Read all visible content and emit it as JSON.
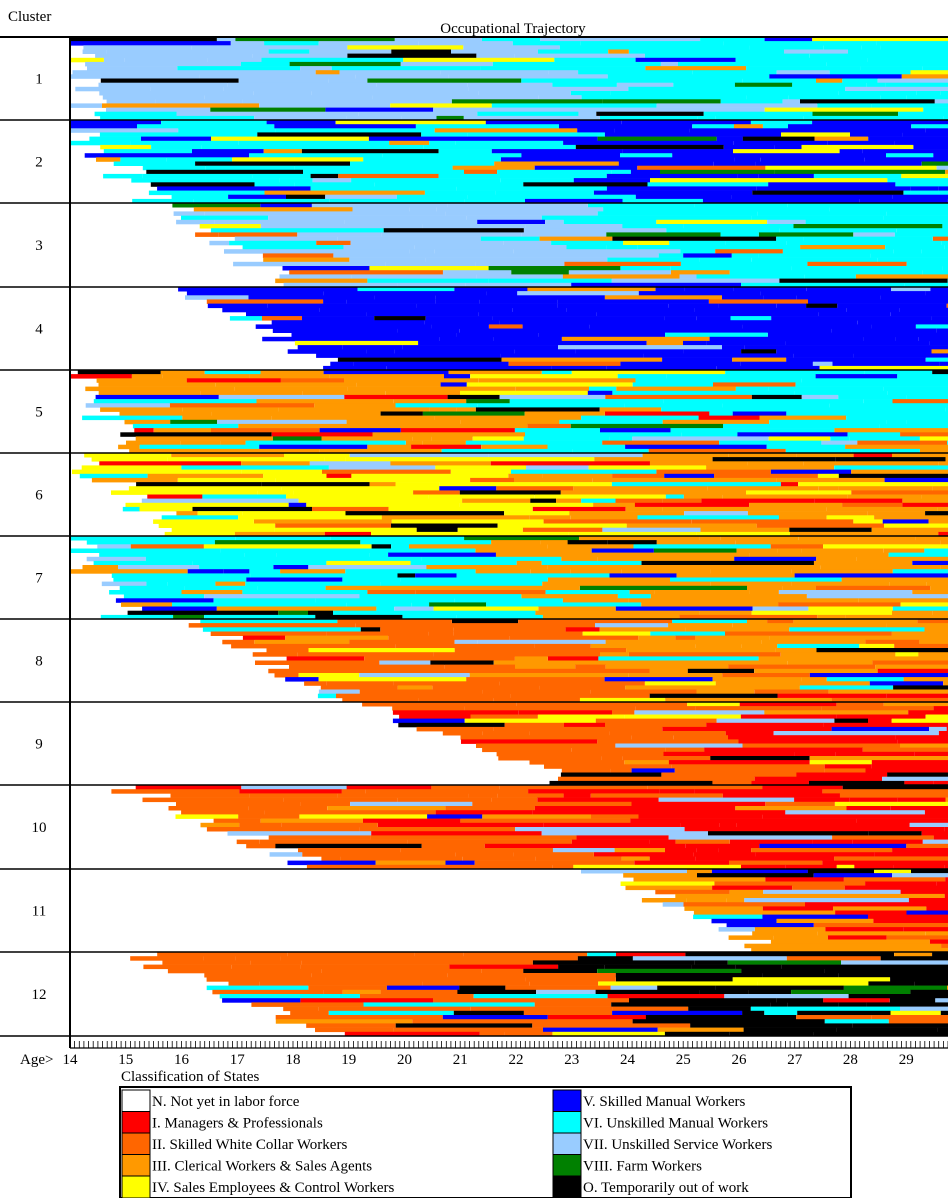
{
  "chart_data": {
    "type": "sequence-index-plot",
    "title": "Occupational Trajectory",
    "ylabel": "Cluster",
    "xlabel_prefix": "Age>",
    "x_ticks": [
      "14",
      "15",
      "16",
      "17",
      "18",
      "19",
      "20",
      "21",
      "22",
      "23",
      "24",
      "25",
      "26",
      "27",
      "28",
      "29"
    ],
    "xlim": [
      14,
      29.75
    ],
    "legend_title": "Classification of States",
    "states": [
      {
        "code": "N",
        "label": "N. Not yet in labor force",
        "color": "#ffffff"
      },
      {
        "code": "I",
        "label": "I. Managers & Professionals",
        "color": "#ff0000"
      },
      {
        "code": "II",
        "label": "II. Skilled White Collar Workers",
        "color": "#ff6600"
      },
      {
        "code": "III",
        "label": "III. Clerical Workers & Sales Agents",
        "color": "#ff9900"
      },
      {
        "code": "IV",
        "label": "IV. Sales Employees & Control Workers",
        "color": "#ffff00"
      },
      {
        "code": "V",
        "label": "V. Skilled Manual Workers",
        "color": "#0000ff"
      },
      {
        "code": "VI",
        "label": "VI. Unskilled Manual Workers",
        "color": "#00ffff"
      },
      {
        "code": "VII",
        "label": "VII. Unskilled Service Workers",
        "color": "#99ccff"
      },
      {
        "code": "VIII",
        "label": "VIII. Farm Workers",
        "color": "#008000"
      },
      {
        "code": "O",
        "label": "O. Temporarily out of work",
        "color": "#000000"
      }
    ],
    "clusters": [
      {
        "id": "1",
        "dominant": [
          "VI",
          "VII"
        ],
        "start_age": [
          14.0,
          14.3
        ]
      },
      {
        "id": "2",
        "dominant": [
          "V",
          "VI"
        ],
        "start_age": [
          14.0,
          15.5
        ]
      },
      {
        "id": "3",
        "dominant": [
          "VI",
          "VII"
        ],
        "start_age": [
          15.8,
          17.8
        ]
      },
      {
        "id": "4",
        "dominant": [
          "V"
        ],
        "start_age": [
          16.2,
          18.8
        ]
      },
      {
        "id": "5",
        "dominant": [
          "VI",
          "V",
          "III"
        ],
        "start_age": [
          14.0,
          15.0
        ]
      },
      {
        "id": "6",
        "dominant": [
          "III",
          "II",
          "IV"
        ],
        "start_age": [
          14.0,
          16.0
        ]
      },
      {
        "id": "7",
        "dominant": [
          "III",
          "V",
          "VI"
        ],
        "start_age": [
          14.0,
          15.0
        ]
      },
      {
        "id": "8",
        "dominant": [
          "III",
          "II"
        ],
        "start_age": [
          16.3,
          18.8
        ]
      },
      {
        "id": "9",
        "dominant": [
          "I",
          "II"
        ],
        "start_age": [
          19.3,
          23.0
        ]
      },
      {
        "id": "10",
        "dominant": [
          "I",
          "II"
        ],
        "start_age": [
          15.0,
          18.5
        ]
      },
      {
        "id": "11",
        "dominant": [
          "I",
          "II",
          "III"
        ],
        "start_age": [
          23.5,
          26.5
        ]
      },
      {
        "id": "12",
        "dominant": [
          "O",
          "VI",
          "II"
        ],
        "start_age": [
          15.2,
          18.5
        ]
      }
    ]
  }
}
